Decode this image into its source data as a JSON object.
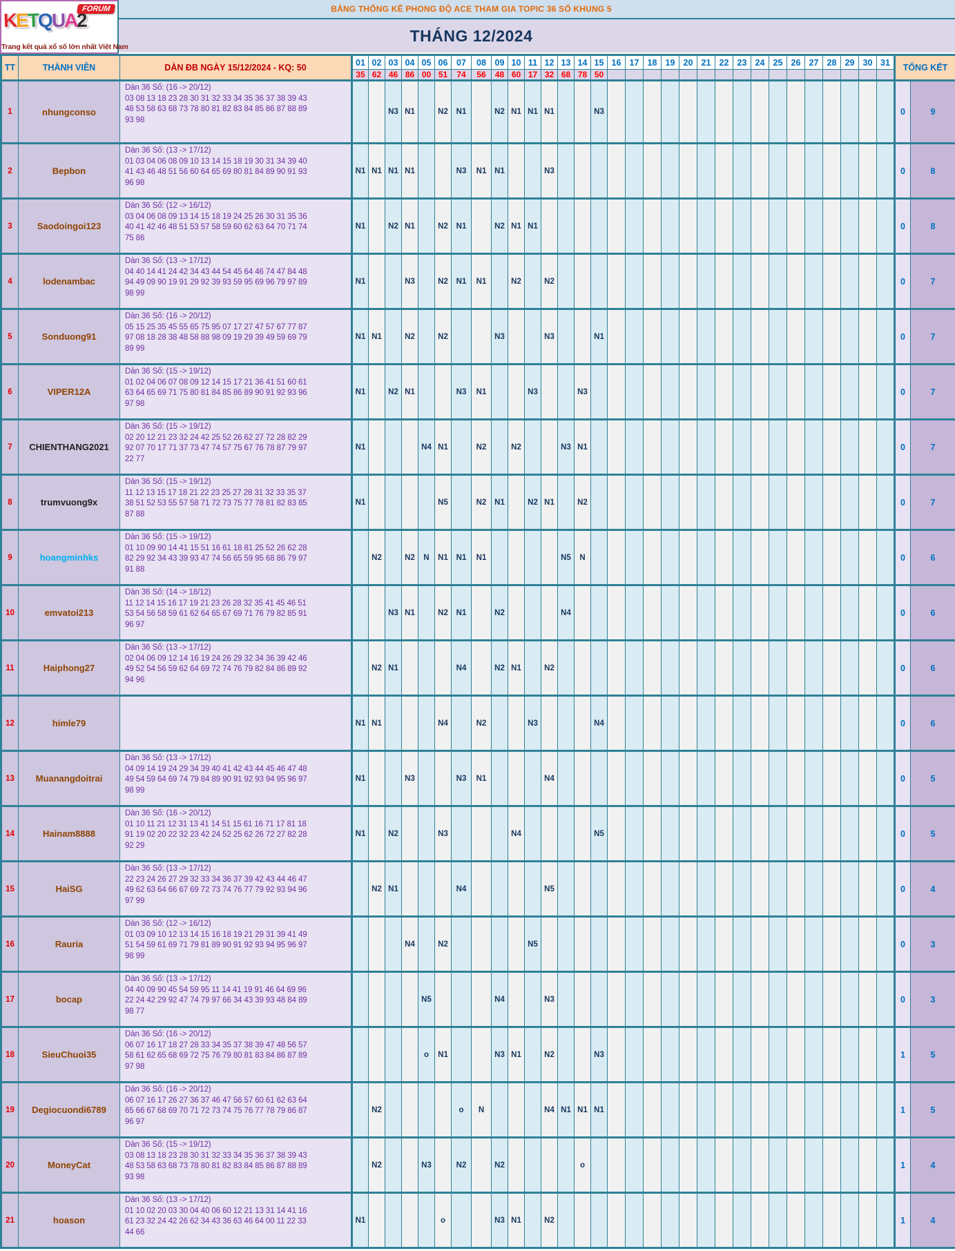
{
  "logo": {
    "letters": [
      {
        "ch": "K",
        "color": "#e2252b"
      },
      {
        "ch": "E",
        "color": "#f4a11d"
      },
      {
        "ch": "T",
        "color": "#2f9d49"
      },
      {
        "ch": "Q",
        "color": "#2a64b0"
      },
      {
        "ch": "U",
        "color": "#8a4fa8"
      },
      {
        "ch": "A",
        "color": "#e0368c"
      },
      {
        "ch": "2",
        "color": "#33302e"
      }
    ],
    "badge": "FORUM",
    "tagline": "Trang kết quả xổ số lớn nhất Việt Nam"
  },
  "banner": {
    "text": "BẢNG THỐNG KÊ PHONG ĐỘ ACE THAM GIA TOPIC 36 SỐ KHUNG 5"
  },
  "month_title": "THÁNG 12/2024",
  "grid": {
    "col_tt": "TT",
    "col_member": "THÀNH VIÊN",
    "col_dan": "DÀN ĐB NGÀY 15/12/2024 - KQ: 50",
    "col_summary": "TỔNG KẾT",
    "days": [
      "01",
      "02",
      "03",
      "04",
      "05",
      "06",
      "07",
      "08",
      "09",
      "10",
      "11",
      "12",
      "13",
      "14",
      "15",
      "16",
      "17",
      "18",
      "19",
      "20",
      "21",
      "22",
      "23",
      "24",
      "25",
      "26",
      "27",
      "28",
      "29",
      "30",
      "31"
    ],
    "results": [
      "35",
      "62",
      "46",
      "86",
      "00",
      "51",
      "74",
      "56",
      "48",
      "60",
      "17",
      "32",
      "68",
      "78",
      "50",
      "",
      "",
      "",
      "",
      "",
      "",
      "",
      "",
      "",
      "",
      "",
      "",
      "",
      "",
      "",
      ""
    ],
    "rows": [
      {
        "tt": "1",
        "member": "nhungconso",
        "name_color": "#8f4504",
        "dan_title": "Dàn 36 Số: (16 -> 20/12)",
        "dan_lines": [
          "03 08 13 18 23 28 30 31 32 33 34 35 36 37 38 39 43",
          "48 53 58 63 68 73 78 80 81 82 83 84 85 86 87 88 89",
          "93 98"
        ],
        "marks": {
          "03": "N3",
          "04": "N1",
          "06": "N2",
          "07": "N1",
          "09": "N2",
          "10": "N1",
          "11": "N1",
          "12": "N1",
          "15": "N3"
        },
        "summary": [
          "0",
          "9"
        ]
      },
      {
        "tt": "2",
        "member": "Bepbon",
        "name_color": "#8f4504",
        "dan_title": "Dàn 36 Số: (13 -> 17/12)",
        "dan_lines": [
          "01 03 04 06 08 09 10 13 14 15 18 19 30 31 34 39 40",
          "41 43 46 48 51 56 60 64 65 69 80 81 84 89 90 91 93",
          "96 98"
        ],
        "marks": {
          "01": "N1",
          "02": "N1",
          "03": "N1",
          "04": "N1",
          "07": "N3",
          "08": "N1",
          "09": "N1",
          "12": "N3"
        },
        "summary": [
          "0",
          "8"
        ]
      },
      {
        "tt": "3",
        "member": "Saodoingoi123",
        "name_color": "#8f4504",
        "dan_title": "Dàn 36 Số: (12 -> 16/12)",
        "dan_lines": [
          "03 04 06 08 09 13 14 15 18 19 24 25 26 30 31 35 36",
          "40 41 42 46 48 51 53 57 58 59 60 62 63 64 70 71 74",
          "75 86"
        ],
        "marks": {
          "01": "N1",
          "03": "N2",
          "04": "N1",
          "06": "N2",
          "07": "N1",
          "09": "N2",
          "10": "N1",
          "11": "N1"
        },
        "summary": [
          "0",
          "8"
        ]
      },
      {
        "tt": "4",
        "member": "lodenambac",
        "name_color": "#8f4504",
        "dan_title": "Dàn 36 Số: (13 -> 17/12)",
        "dan_lines": [
          "04 40 14 41 24 42 34 43 44 54 45 64 46 74 47 84 48",
          "94 49 09 90 19 91 29 92 39 93 59 95 69 96 79 97 89",
          "98 99"
        ],
        "marks": {
          "01": "N1",
          "04": "N3",
          "06": "N2",
          "07": "N1",
          "08": "N1",
          "10": "N2",
          "12": "N2"
        },
        "summary": [
          "0",
          "7"
        ]
      },
      {
        "tt": "5",
        "member": "Sonduong91",
        "name_color": "#8f4504",
        "dan_title": "Dàn 36 Số: (16 -> 20/12)",
        "dan_lines": [
          "05 15 25 35 45 55 65 75 95 07 17 27 47 57 67 77 87",
          "97 08 18 28 38 48 58 88 98 09 19 29 39 49 59 69 79",
          "89 99"
        ],
        "marks": {
          "01": "N1",
          "02": "N1",
          "04": "N2",
          "06": "N2",
          "09": "N3",
          "12": "N3",
          "15": "N1"
        },
        "summary": [
          "0",
          "7"
        ]
      },
      {
        "tt": "6",
        "member": "VIPER12A",
        "name_color": "#8f4504",
        "dan_title": "Dàn 36 Số: (15 -> 19/12)",
        "dan_lines": [
          "01 02 04 06 07 08 09 12 14 15 17 21 36 41 51 60 61",
          "63 64 65 69 71 75 80 81 84 85 86 89 90 91 92 93 96",
          "97 98"
        ],
        "marks": {
          "01": "N1",
          "03": "N2",
          "04": "N1",
          "07": "N3",
          "08": "N1",
          "11": "N3",
          "14": "N3"
        },
        "summary": [
          "0",
          "7"
        ]
      },
      {
        "tt": "7",
        "member": "CHIENTHANG2021",
        "name_color": "#1f1f1f",
        "dan_title": "Dàn 36 Số: (15 -> 19/12)",
        "dan_lines": [
          "02 20 12 21 23 32 24 42 25 52 26 62 27 72 28 82 29",
          "92 07 70 17 71 37 73 47 74 57 75 67 76 78 87 79 97",
          "22 77"
        ],
        "marks": {
          "01": "N1",
          "05": "N4",
          "06": "N1",
          "08": "N2",
          "10": "N2",
          "13": "N3",
          "14": "N1"
        },
        "summary": [
          "0",
          "7"
        ]
      },
      {
        "tt": "8",
        "member": "trumvuong9x",
        "name_color": "#1f1f1f",
        "dan_title": "Dàn 36 Số: (15 -> 19/12)",
        "dan_lines": [
          "11 12 13 15 17 18 21 22 23 25 27 28 31 32 33 35 37",
          "38 51 52 53 55 57 58 71 72 73 75 77 78 81 82 83 85",
          "87 88"
        ],
        "marks": {
          "01": "N1",
          "06": "N5",
          "08": "N2",
          "09": "N1",
          "11": "N2",
          "12": "N1",
          "14": "N2"
        },
        "summary": [
          "0",
          "7"
        ]
      },
      {
        "tt": "9",
        "member": "hoangminhks",
        "name_color": "#00b0f0",
        "dan_title": "Dàn 36 Số: (15 -> 19/12)",
        "dan_lines": [
          "01 10 09 90 14 41 15 51 16 61 18 81 25 52 26 62 28",
          "82 29 92 34 43 39 93 47 74 56 65 59 95 68 86 79 97",
          "91 88"
        ],
        "marks": {
          "02": "N2",
          "04": "N2",
          "05": "N",
          "06": "N1",
          "07": "N1",
          "08": "N1",
          "13": "N5",
          "14": "N"
        },
        "summary": [
          "0",
          "6"
        ]
      },
      {
        "tt": "10",
        "member": "emvatoi213",
        "name_color": "#8f4504",
        "dan_title": "Dàn 36 Số: (14 -> 18/12)",
        "dan_lines": [
          "11 12 14 15 16 17 19 21 23 26 28 32 35 41 45 46 51",
          "53 54 56 58 59 61 62 64 65 67 69 71 76 79 82 85 91",
          "96 97"
        ],
        "marks": {
          "03": "N3",
          "04": "N1",
          "06": "N2",
          "07": "N1",
          "09": "N2",
          "13": "N4"
        },
        "summary": [
          "0",
          "6"
        ]
      },
      {
        "tt": "11",
        "member": "Haiphong27",
        "name_color": "#8f4504",
        "dan_title": "Dàn 36 Số: (13 -> 17/12)",
        "dan_lines": [
          "02 04 06 09 12 14 16 19 24 26 29 32 34 36 39 42 46",
          "49 52 54 56 59 62 64 69 72 74 76 79 82 84 86 89 92",
          "94 96"
        ],
        "marks": {
          "02": "N2",
          "03": "N1",
          "07": "N4",
          "09": "N2",
          "10": "N1",
          "12": "N2"
        },
        "summary": [
          "0",
          "6"
        ]
      },
      {
        "tt": "12",
        "member": "himle79",
        "name_color": "#8f4504",
        "dan_title": "",
        "dan_lines": [],
        "marks": {
          "01": "N1",
          "02": "N1",
          "06": "N4",
          "08": "N2",
          "11": "N3",
          "15": "N4"
        },
        "summary": [
          "0",
          "6"
        ]
      },
      {
        "tt": "13",
        "member": "Muanangdoitrai",
        "name_color": "#8f4504",
        "dan_title": "Dàn 36 Số: (13 -> 17/12)",
        "dan_lines": [
          "04 09 14 19 24 29 34 39 40 41 42 43 44 45 46 47 48",
          "49 54 59 64 69 74 79 84 89 90 91 92 93 94 95 96 97",
          "98 99"
        ],
        "marks": {
          "01": "N1",
          "04": "N3",
          "07": "N3",
          "08": "N1",
          "12": "N4"
        },
        "summary": [
          "0",
          "5"
        ]
      },
      {
        "tt": "14",
        "member": "Hainam8888",
        "name_color": "#8f4504",
        "dan_title": "Dàn 36 Số: (16 -> 20/12)",
        "dan_lines": [
          "01 10 11 21 12 31 13 41 14 51 15 61 16 71 17 81 18",
          "91 19 02 20 22 32 23 42 24 52 25 62 26 72 27 82 28",
          "92 29"
        ],
        "marks": {
          "01": "N1",
          "03": "N2",
          "06": "N3",
          "10": "N4",
          "15": "N5"
        },
        "summary": [
          "0",
          "5"
        ]
      },
      {
        "tt": "15",
        "member": "HaiSG",
        "name_color": "#8f4504",
        "dan_title": "Dàn 36 Số: (13 -> 17/12)",
        "dan_lines": [
          "22 23 24 26 27 29 32 33 34 36 37 39 42 43 44 46 47",
          "49 62 63 64 66 67 69 72 73 74 76 77 79 92 93 94 96",
          "97 99"
        ],
        "marks": {
          "02": "N2",
          "03": "N1",
          "07": "N4",
          "12": "N5"
        },
        "summary": [
          "0",
          "4"
        ]
      },
      {
        "tt": "16",
        "member": "Rauria",
        "name_color": "#8f4504",
        "dan_title": "Dàn 36 Số: (12 -> 16/12)",
        "dan_lines": [
          "01 03 09 10 12 13 14 15 16 18 19 21 29 31 39 41 49",
          "51 54 59 61 69 71 79 81 89 90 91 92 93 94 95 96 97",
          "98 99"
        ],
        "marks": {
          "04": "N4",
          "06": "N2",
          "11": "N5"
        },
        "summary": [
          "0",
          "3"
        ]
      },
      {
        "tt": "17",
        "member": "bocap",
        "name_color": "#8f4504",
        "dan_title": "Dàn 36 Số: (13 -> 17/12)",
        "dan_lines": [
          "04 40 09 90 45 54 59 95 11 14 41 19 91 46 64 69 96",
          "22 24 42 29 92 47 74 79 97 66 34 43 39 93 48 84 89",
          "98 77"
        ],
        "marks": {
          "05": "N5",
          "09": "N4",
          "12": "N3"
        },
        "summary": [
          "0",
          "3"
        ]
      },
      {
        "tt": "18",
        "member": "SieuChuoi35",
        "name_color": "#8f4504",
        "dan_title": "Dàn 36 Số: (16 -> 20/12)",
        "dan_lines": [
          "06 07 16 17 18 27 28 33 34 35 37 38 39 47 48 56 57",
          "58 61 62 65 68 69 72 75 76 79 80 81 83 84 86 87 89",
          "97 98"
        ],
        "marks": {
          "05": "o",
          "06": "N1",
          "09": "N3",
          "10": "N1",
          "12": "N2",
          "15": "N3"
        },
        "summary": [
          "1",
          "5"
        ]
      },
      {
        "tt": "19",
        "member": "Degiocuondi6789",
        "name_color": "#8f4504",
        "dan_title": "Dàn 36 Số: (16 -> 20/12)",
        "dan_lines": [
          "06 07 16 17 26 27 36 37 46 47 56 57 60 61 62 63 64",
          "65 66 67 68 69 70 71 72 73 74 75 76 77 78 79 86 87",
          "96 97"
        ],
        "marks": {
          "02": "N2",
          "07": "o",
          "08": "N",
          "12": "N4",
          "13": "N1",
          "14": "N1",
          "15": "N1"
        },
        "summary": [
          "1",
          "5"
        ]
      },
      {
        "tt": "20",
        "member": "MoneyCat",
        "name_color": "#8f4504",
        "dan_title": "Dàn 36 Số: (15 -> 19/12)",
        "dan_lines": [
          "03 08 13 18 23 28 30 31 32 33 34 35 36 37 38 39 43",
          "48 53 58 63 68 73 78 80 81 82 83 84 85 86 87 88 89",
          "93 98"
        ],
        "marks": {
          "02": "N2",
          "05": "N3",
          "07": "N2",
          "09": "N2",
          "14": "o"
        },
        "summary": [
          "1",
          "4"
        ]
      },
      {
        "tt": "21",
        "member": "hoason",
        "name_color": "#8f4504",
        "dan_title": "Dàn 36 Số: (13 -> 17/12)",
        "dan_lines": [
          "01 10 02 20 03 30 04 40 06 60 12 21 13 31 14 41 16",
          "61 23 32 24 42 26 62 34 43 36 63 46 64 00 11 22 33",
          "44 66"
        ],
        "marks": {
          "01": "N1",
          "06": "o",
          "09": "N3",
          "10": "N1",
          "12": "N2"
        },
        "summary": [
          "1",
          "4"
        ]
      }
    ]
  }
}
